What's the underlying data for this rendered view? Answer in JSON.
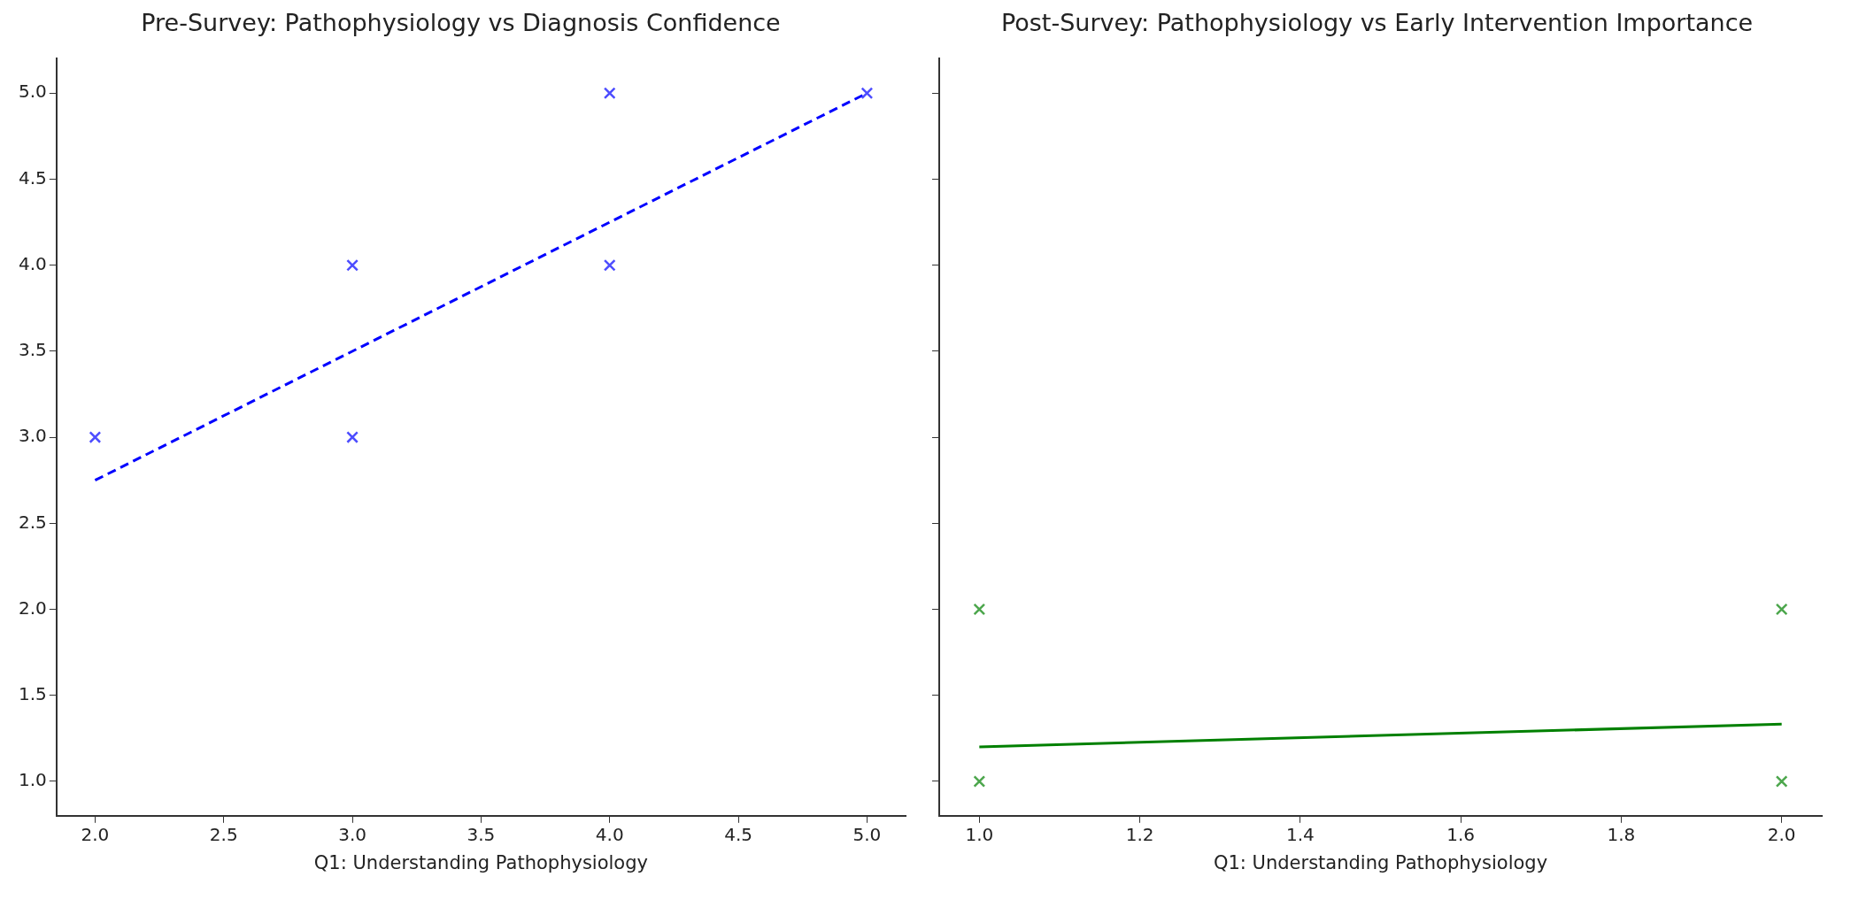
{
  "chart_data": [
    {
      "type": "scatter",
      "title": "Pre-Survey: Pathophysiology vs Diagnosis Confidence",
      "xlabel": "Q1: Understanding Pathophysiology",
      "xlim": [
        1.85,
        5.15
      ],
      "xticks": [
        {
          "value": 2,
          "label": "2.0"
        },
        {
          "value": 2.5,
          "label": "2.5"
        },
        {
          "value": 3,
          "label": "3.0"
        },
        {
          "value": 3.5,
          "label": "3.5"
        },
        {
          "value": 4,
          "label": "4.0"
        },
        {
          "value": 4.5,
          "label": "4.5"
        },
        {
          "value": 5,
          "label": "5.0"
        }
      ],
      "ylim": [
        0.8,
        5.2
      ],
      "yticks": [
        {
          "value": 1,
          "label": "1.0"
        },
        {
          "value": 1.5,
          "label": "1.5"
        },
        {
          "value": 2,
          "label": "2.0"
        },
        {
          "value": 2.5,
          "label": "2.5"
        },
        {
          "value": 3,
          "label": "3.0"
        },
        {
          "value": 3.5,
          "label": "3.5"
        },
        {
          "value": 4,
          "label": "4.0"
        },
        {
          "value": 4.5,
          "label": "4.5"
        },
        {
          "value": 5,
          "label": "5.0"
        }
      ],
      "grid": false,
      "legend": false,
      "series": [
        {
          "type": "scatter",
          "color": "#4d4dff",
          "marker": "cross",
          "x": [
            2,
            3,
            3,
            4,
            4,
            5
          ],
          "values": [
            3,
            4,
            3,
            5,
            4,
            5
          ]
        },
        {
          "type": "line",
          "color": "#0000ff",
          "line_style": "dashed",
          "x": [
            2,
            5
          ],
          "values": [
            2.75,
            5
          ]
        }
      ]
    },
    {
      "type": "scatter",
      "title": "Post-Survey: Pathophysiology vs Early Intervention Importance",
      "xlabel": "Q1: Understanding Pathophysiology",
      "xlim": [
        0.95,
        2.05
      ],
      "xticks": [
        {
          "value": 1,
          "label": "1.0"
        },
        {
          "value": 1.2,
          "label": "1.2"
        },
        {
          "value": 1.4,
          "label": "1.4"
        },
        {
          "value": 1.6,
          "label": "1.6"
        },
        {
          "value": 1.8,
          "label": "1.8"
        },
        {
          "value": 2,
          "label": "2.0"
        }
      ],
      "ylim": [
        0.8,
        5.2
      ],
      "yticks": [
        {
          "value": 1,
          "label": null
        },
        {
          "value": 1.5,
          "label": null
        },
        {
          "value": 2,
          "label": null
        },
        {
          "value": 2.5,
          "label": null
        },
        {
          "value": 3,
          "label": null
        },
        {
          "value": 3.5,
          "label": null
        },
        {
          "value": 4,
          "label": null
        },
        {
          "value": 4.5,
          "label": null
        },
        {
          "value": 5,
          "label": null
        }
      ],
      "tick_labels": "x",
      "grid": false,
      "legend": false,
      "series": [
        {
          "type": "scatter",
          "color": "#4ca64c",
          "marker": "cross",
          "x": [
            1,
            1,
            2,
            2
          ],
          "values": [
            2,
            1,
            2,
            1
          ]
        },
        {
          "type": "line",
          "color": "#008000",
          "line_style": "solid",
          "x": [
            1,
            2
          ],
          "values": [
            1.2,
            1.333
          ]
        }
      ]
    }
  ]
}
